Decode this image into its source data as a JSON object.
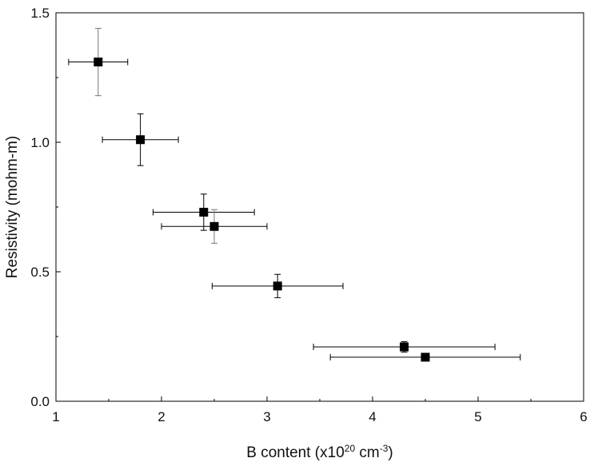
{
  "chart_data": {
    "type": "scatter",
    "title": "",
    "xlabel": {
      "main": "B content (x10",
      "sup1": "20",
      "mid": " cm",
      "sup2": "-3",
      "end": ")"
    },
    "ylabel": "Resistivity (mohm-m)",
    "xlim": [
      1,
      6
    ],
    "ylim": [
      0,
      1.5
    ],
    "xticks": [
      1,
      2,
      3,
      4,
      5,
      6
    ],
    "xtick_labels": [
      "1",
      "2",
      "3",
      "4",
      "5",
      "6"
    ],
    "yticks": [
      0,
      0.5,
      1.0,
      1.5
    ],
    "ytick_labels": [
      "0.0",
      "0.5",
      "1.0",
      "1.5"
    ],
    "grid": false,
    "legend": "none",
    "marker": "filled-square",
    "marker_color": "#000000",
    "points": [
      {
        "x": 1.4,
        "y": 1.31,
        "xerr": 0.28,
        "yerr": 0.13
      },
      {
        "x": 1.8,
        "y": 1.01,
        "xerr": 0.36,
        "yerr": 0.1
      },
      {
        "x": 2.4,
        "y": 0.73,
        "xerr": 0.48,
        "yerr": 0.07
      },
      {
        "x": 2.5,
        "y": 0.675,
        "xerr": 0.5,
        "yerr": 0.065
      },
      {
        "x": 3.1,
        "y": 0.445,
        "xerr": 0.62,
        "yerr": 0.045
      },
      {
        "x": 4.3,
        "y": 0.21,
        "xerr": 0.86,
        "yerr": 0.02
      },
      {
        "x": 4.5,
        "y": 0.17,
        "xerr": 0.9,
        "yerr": 0.01
      }
    ]
  }
}
